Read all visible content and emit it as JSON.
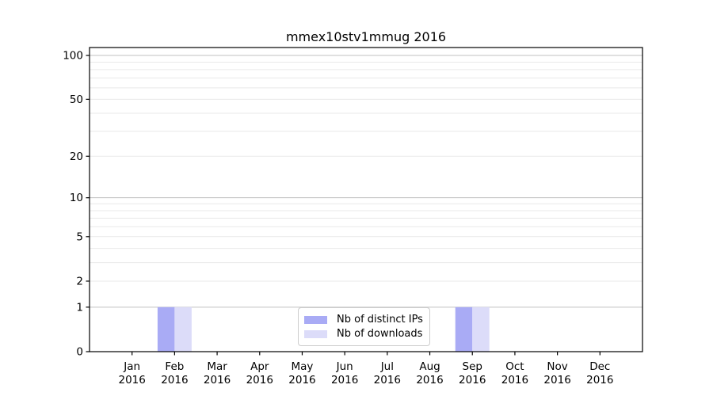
{
  "title": "mmex10stv1mmug 2016",
  "chart_data": {
    "type": "bar",
    "title": "mmex10stv1mmug 2016",
    "x_categories": [
      "Jan",
      "Feb",
      "Mar",
      "Apr",
      "May",
      "Jun",
      "Jul",
      "Aug",
      "Sep",
      "Oct",
      "Nov",
      "Dec"
    ],
    "x_sub_label": "2016",
    "series": [
      {
        "name": "Nb of distinct IPs",
        "color": "#a9abf5",
        "values": [
          0,
          1,
          0,
          0,
          0,
          0,
          0,
          0,
          1,
          0,
          0,
          0
        ]
      },
      {
        "name": "Nb of downloads",
        "color": "#dcdcf9",
        "values": [
          0,
          1,
          0,
          0,
          0,
          0,
          0,
          0,
          1,
          0,
          0,
          0
        ]
      }
    ],
    "y_axis": {
      "scale": "log10(1+v)",
      "tick_values": [
        0,
        1,
        2,
        5,
        10,
        20,
        50,
        100
      ],
      "tick_labels": [
        "0",
        "1",
        "2",
        "5",
        "10",
        "20",
        "50",
        "100"
      ],
      "major_gridlines": [
        1,
        10,
        100
      ],
      "minor_gridlines": [
        2,
        3,
        4,
        5,
        6,
        7,
        8,
        9,
        20,
        30,
        40,
        50,
        60,
        70,
        80,
        90
      ]
    },
    "legend": {
      "position": "lower center",
      "entries": [
        "Nb of distinct IPs",
        "Nb of downloads"
      ]
    },
    "colors": {
      "grid_major": "#c0c0c0",
      "grid_minor": "#e9e9e9",
      "axis": "#000000",
      "text": "#000000",
      "legend_border": "#cccccc",
      "background": "#ffffff"
    }
  }
}
